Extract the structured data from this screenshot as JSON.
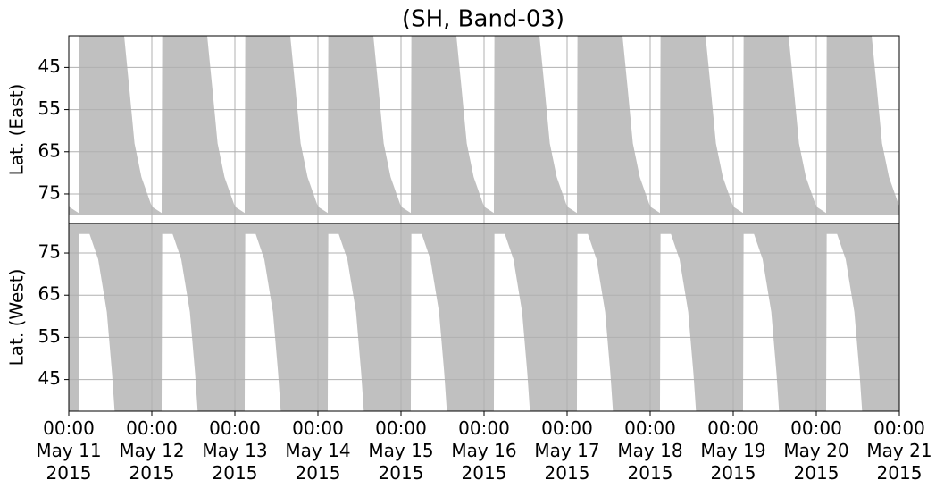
{
  "chart_data": {
    "type": "area",
    "title": "(SH, Band-03)",
    "x": [
      "2015-05-11 00:00",
      "2015-05-11 02:50",
      "2015-05-11 03:00",
      "2015-05-11 06:00",
      "2015-05-11 08:30",
      "2015-05-11 11:00",
      "2015-05-11 12:30",
      "2015-05-11 13:15",
      "2015-05-11 16:00",
      "2015-05-11 17:30",
      "2015-05-11 19:00",
      "2015-05-11 21:00",
      "2015-05-12 00:00",
      "2015-05-12 02:50",
      "2015-05-12 03:00",
      "2015-05-12 06:00",
      "2015-05-12 08:30",
      "2015-05-12 11:00",
      "2015-05-12 12:30",
      "2015-05-12 13:15",
      "2015-05-12 16:00",
      "2015-05-12 17:30",
      "2015-05-12 19:00",
      "2015-05-12 21:00",
      "2015-05-13 00:00",
      "2015-05-13 02:50",
      "2015-05-13 03:00",
      "2015-05-13 06:00",
      "2015-05-13 08:30",
      "2015-05-13 11:00",
      "2015-05-13 12:30",
      "2015-05-13 13:15",
      "2015-05-13 16:00",
      "2015-05-13 17:30",
      "2015-05-13 19:00",
      "2015-05-13 21:00",
      "2015-05-14 00:00",
      "2015-05-14 02:50",
      "2015-05-14 03:00",
      "2015-05-14 06:00",
      "2015-05-14 08:30",
      "2015-05-14 11:00",
      "2015-05-14 12:30",
      "2015-05-14 13:15",
      "2015-05-14 16:00",
      "2015-05-14 17:30",
      "2015-05-14 19:00",
      "2015-05-14 21:00",
      "2015-05-15 00:00",
      "2015-05-15 02:50",
      "2015-05-15 03:00",
      "2015-05-15 06:00",
      "2015-05-15 08:30",
      "2015-05-15 11:00",
      "2015-05-15 12:30",
      "2015-05-15 13:15",
      "2015-05-15 16:00",
      "2015-05-15 17:30",
      "2015-05-15 19:00",
      "2015-05-15 21:00",
      "2015-05-16 00:00",
      "2015-05-16 02:50",
      "2015-05-16 03:00",
      "2015-05-16 06:00",
      "2015-05-16 08:30",
      "2015-05-16 11:00",
      "2015-05-16 12:30",
      "2015-05-16 13:15",
      "2015-05-16 16:00",
      "2015-05-16 17:30",
      "2015-05-16 19:00",
      "2015-05-16 21:00",
      "2015-05-17 00:00",
      "2015-05-17 02:50",
      "2015-05-17 03:00",
      "2015-05-17 06:00",
      "2015-05-17 08:30",
      "2015-05-17 11:00",
      "2015-05-17 12:30",
      "2015-05-17 13:15",
      "2015-05-17 16:00",
      "2015-05-17 17:30",
      "2015-05-17 19:00",
      "2015-05-17 21:00",
      "2015-05-18 00:00",
      "2015-05-18 02:50",
      "2015-05-18 03:00",
      "2015-05-18 06:00",
      "2015-05-18 08:30",
      "2015-05-18 11:00",
      "2015-05-18 12:30",
      "2015-05-18 13:15",
      "2015-05-18 16:00",
      "2015-05-18 17:30",
      "2015-05-18 19:00",
      "2015-05-18 21:00",
      "2015-05-19 00:00",
      "2015-05-19 02:50",
      "2015-05-19 03:00",
      "2015-05-19 06:00",
      "2015-05-19 08:30",
      "2015-05-19 11:00",
      "2015-05-19 12:30",
      "2015-05-19 13:15",
      "2015-05-19 16:00",
      "2015-05-19 17:30",
      "2015-05-19 19:00",
      "2015-05-19 21:00",
      "2015-05-20 00:00",
      "2015-05-20 02:50",
      "2015-05-20 03:00",
      "2015-05-20 06:00",
      "2015-05-20 08:30",
      "2015-05-20 11:00",
      "2015-05-20 12:30",
      "2015-05-20 13:15",
      "2015-05-20 16:00",
      "2015-05-20 17:30",
      "2015-05-20 19:00",
      "2015-05-20 21:00",
      "2015-05-21 00:00"
    ],
    "xlim": [
      "2015-05-11 00:00",
      "2015-05-21 00:00"
    ],
    "xticks": [
      {
        "value": "2015-05-11 00:00",
        "label": "00:00\nMay 11\n2015"
      },
      {
        "value": "2015-05-12 00:00",
        "label": "00:00\nMay 12\n2015"
      },
      {
        "value": "2015-05-13 00:00",
        "label": "00:00\nMay 13\n2015"
      },
      {
        "value": "2015-05-14 00:00",
        "label": "00:00\nMay 14\n2015"
      },
      {
        "value": "2015-05-15 00:00",
        "label": "00:00\nMay 15\n2015"
      },
      {
        "value": "2015-05-16 00:00",
        "label": "00:00\nMay 16\n2015"
      },
      {
        "value": "2015-05-17 00:00",
        "label": "00:00\nMay 17\n2015"
      },
      {
        "value": "2015-05-18 00:00",
        "label": "00:00\nMay 18\n2015"
      },
      {
        "value": "2015-05-19 00:00",
        "label": "00:00\nMay 19\n2015"
      },
      {
        "value": "2015-05-20 00:00",
        "label": "00:00\nMay 20\n2015"
      },
      {
        "value": "2015-05-21 00:00",
        "label": "00:00\nMay 21\n2015"
      }
    ],
    "grid": true,
    "panels": [
      {
        "ylabel": "Lat. (East)",
        "ylim": [
          37.5,
          82
        ],
        "yticks": [
          45,
          55,
          65,
          75
        ],
        "invert_y": true,
        "fill_to": 80,
        "color": "#c0c0c0",
        "values": [
          78,
          79.5,
          37.5,
          37.5,
          37.5,
          37.5,
          37.5,
          37.5,
          37.5,
          50,
          63,
          71,
          78,
          79.5,
          37.5,
          37.5,
          37.5,
          37.5,
          37.5,
          37.5,
          37.5,
          50,
          63,
          71,
          78,
          79.5,
          37.5,
          37.5,
          37.5,
          37.5,
          37.5,
          37.5,
          37.5,
          50,
          63,
          71,
          78,
          79.5,
          37.5,
          37.5,
          37.5,
          37.5,
          37.5,
          37.5,
          37.5,
          50,
          63,
          71,
          78,
          79.5,
          37.5,
          37.5,
          37.5,
          37.5,
          37.5,
          37.5,
          37.5,
          50,
          63,
          71,
          78,
          79.5,
          37.5,
          37.5,
          37.5,
          37.5,
          37.5,
          37.5,
          37.5,
          50,
          63,
          71,
          78,
          79.5,
          37.5,
          37.5,
          37.5,
          37.5,
          37.5,
          37.5,
          37.5,
          50,
          63,
          71,
          78,
          79.5,
          37.5,
          37.5,
          37.5,
          37.5,
          37.5,
          37.5,
          37.5,
          50,
          63,
          71,
          78,
          79.5,
          37.5,
          37.5,
          37.5,
          37.5,
          37.5,
          37.5,
          37.5,
          50,
          63,
          71,
          78,
          79.5,
          37.5,
          37.5,
          37.5,
          37.5,
          37.5,
          37.5,
          37.5,
          50,
          63,
          71,
          78
        ]
      },
      {
        "ylabel": "Lat. (West)",
        "ylim": [
          37.5,
          82
        ],
        "yticks": [
          45,
          55,
          65,
          75
        ],
        "invert_y": false,
        "fill_to": 82,
        "color": "#c0c0c0",
        "values": [
          37.5,
          37.5,
          79.5,
          79.5,
          73.5,
          61,
          46.5,
          37.5,
          37.5,
          37.5,
          37.5,
          37.5,
          37.5,
          37.5,
          79.5,
          79.5,
          73.5,
          61,
          46.5,
          37.5,
          37.5,
          37.5,
          37.5,
          37.5,
          37.5,
          37.5,
          79.5,
          79.5,
          73.5,
          61,
          46.5,
          37.5,
          37.5,
          37.5,
          37.5,
          37.5,
          37.5,
          37.5,
          79.5,
          79.5,
          73.5,
          61,
          46.5,
          37.5,
          37.5,
          37.5,
          37.5,
          37.5,
          37.5,
          37.5,
          79.5,
          79.5,
          73.5,
          61,
          46.5,
          37.5,
          37.5,
          37.5,
          37.5,
          37.5,
          37.5,
          37.5,
          79.5,
          79.5,
          73.5,
          61,
          46.5,
          37.5,
          37.5,
          37.5,
          37.5,
          37.5,
          37.5,
          37.5,
          79.5,
          79.5,
          73.5,
          61,
          46.5,
          37.5,
          37.5,
          37.5,
          37.5,
          37.5,
          37.5,
          37.5,
          79.5,
          79.5,
          73.5,
          61,
          46.5,
          37.5,
          37.5,
          37.5,
          37.5,
          37.5,
          37.5,
          37.5,
          79.5,
          79.5,
          73.5,
          61,
          46.5,
          37.5,
          37.5,
          37.5,
          37.5,
          37.5,
          37.5,
          37.5,
          79.5,
          79.5,
          73.5,
          61,
          46.5,
          37.5,
          37.5,
          37.5,
          37.5,
          37.5,
          37.5
        ]
      }
    ]
  }
}
